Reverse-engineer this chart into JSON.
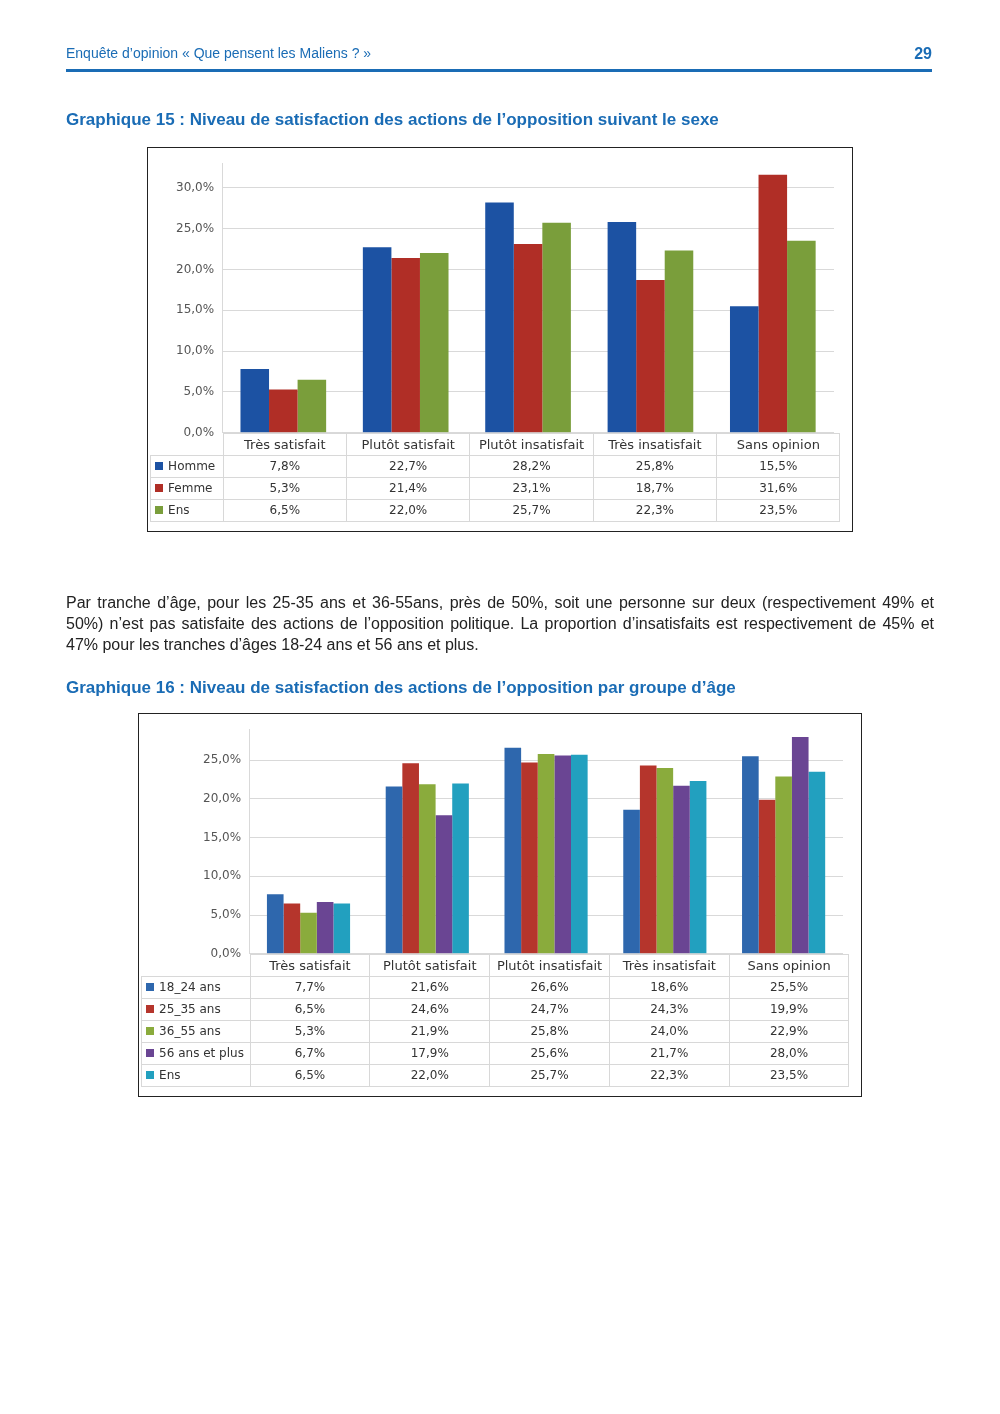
{
  "chart_data": [
    {
      "type": "bar",
      "title": "Graphique 15 : Niveau de satisfaction des actions de l’opposition suivant le sexe",
      "annotations": [
        "Enquête d’opinion « Que pensent les Maliens ? »",
        "29"
      ],
      "categories": [
        "Très satisfait",
        "Plutôt satisfait",
        "Plutôt insatisfait",
        "Très insatisfait",
        "Sans opinion"
      ],
      "series": [
        {
          "name": "Homme",
          "color": "#1c52a3",
          "values": [
            7.8,
            22.7,
            28.2,
            25.8,
            15.5
          ],
          "value_labels": [
            "7,8%",
            "22,7%",
            "28,2%",
            "25,8%",
            "15,5%"
          ]
        },
        {
          "name": "Femme",
          "color": "#b02e26",
          "values": [
            5.3,
            21.4,
            23.1,
            18.7,
            31.6
          ],
          "value_labels": [
            "5,3%",
            "21,4%",
            "23,1%",
            "18,7%",
            "31,6%"
          ]
        },
        {
          "name": "Ens",
          "color": "#7a9e3b",
          "values": [
            6.5,
            22.0,
            25.7,
            22.3,
            23.5
          ],
          "value_labels": [
            "6,5%",
            "22,0%",
            "25,7%",
            "22,3%",
            "23,5%"
          ]
        }
      ],
      "ylim": [
        0,
        33
      ],
      "yticks": [
        {
          "value": 0,
          "label": "0,0%"
        },
        {
          "value": 5,
          "label": "5,0%"
        },
        {
          "value": 10,
          "label": "10,0%"
        },
        {
          "value": 15,
          "label": "15,0%"
        },
        {
          "value": 20,
          "label": "20,0%"
        },
        {
          "value": 25,
          "label": "25,0%"
        },
        {
          "value": 30,
          "label": "30,0%"
        }
      ],
      "grid": "y",
      "legend": "bottom"
    },
    {
      "type": "bar",
      "title": "Graphique 16 : Niveau de satisfaction des actions de l’opposition par groupe d’âge",
      "annotations": [
        "Par tranche d’âge, pour les 25-35 ans et 36-55ans, près de 50%, soit une personne sur deux (respectivement 49% et 50%)  n’est pas satisfaite des actions de l’opposition politique. La proportion d’insatisfaits est respectivement de 45% et 47% pour les tranches d’âges 18-24 ans et 56 ans et plus."
      ],
      "categories": [
        "Très satisfait",
        "Plutôt satisfait",
        "Plutôt insatisfait",
        "Très insatisfait",
        "Sans opinion"
      ],
      "series": [
        {
          "name": "18_24 ans",
          "color": "#2e67ad",
          "values": [
            7.7,
            21.6,
            26.6,
            18.6,
            25.5
          ],
          "value_labels": [
            "7,7%",
            "21,6%",
            "26,6%",
            "18,6%",
            "25,5%"
          ]
        },
        {
          "name": "25_35 ans",
          "color": "#b5352c",
          "values": [
            6.5,
            24.6,
            24.7,
            24.3,
            19.9
          ],
          "value_labels": [
            "6,5%",
            "24,6%",
            "24,7%",
            "24,3%",
            "19,9%"
          ]
        },
        {
          "name": "36_55 ans",
          "color": "#8aab3c",
          "values": [
            5.3,
            21.9,
            25.8,
            24.0,
            22.9
          ],
          "value_labels": [
            "5,3%",
            "21,9%",
            "25,8%",
            "24,0%",
            "22,9%"
          ]
        },
        {
          "name": "56 ans et plus",
          "color": "#6a4593",
          "values": [
            6.7,
            17.9,
            25.6,
            21.7,
            28.0
          ],
          "value_labels": [
            "6,7%",
            "17,9%",
            "25,6%",
            "21,7%",
            "28,0%"
          ]
        },
        {
          "name": "Ens",
          "color": "#22a0bf",
          "values": [
            6.5,
            22.0,
            25.7,
            22.3,
            23.5
          ],
          "value_labels": [
            "6,5%",
            "22,0%",
            "25,7%",
            "22,3%",
            "23,5%"
          ]
        }
      ],
      "ylim": [
        0,
        29
      ],
      "yticks": [
        {
          "value": 0,
          "label": "0,0%"
        },
        {
          "value": 5,
          "label": "5,0%"
        },
        {
          "value": 10,
          "label": "10,0%"
        },
        {
          "value": 15,
          "label": "15,0%"
        },
        {
          "value": 20,
          "label": "20,0%"
        },
        {
          "value": 25,
          "label": "25,0%"
        }
      ],
      "grid": "y",
      "legend": "bottom"
    }
  ]
}
